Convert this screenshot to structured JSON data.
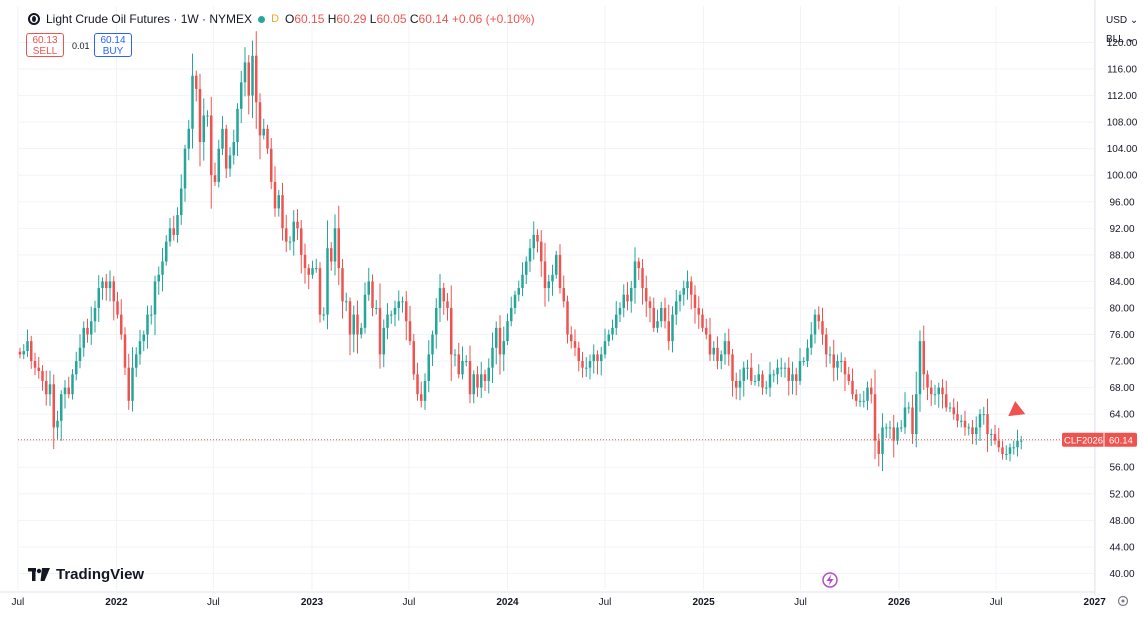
{
  "header": {
    "title": "Light Crude Oil Futures · 1W · NYMEX",
    "badge": "D",
    "open_label": "O",
    "open": "60.15",
    "high_label": "H",
    "high": "60.29",
    "low_label": "L",
    "low": "60.05",
    "close_label": "C",
    "close": "60.14",
    "change": "+0.06 (+0.10%)"
  },
  "trade": {
    "sell_price": "60.13",
    "sell_label": "SELL",
    "spread": "0.01",
    "buy_price": "60.14",
    "buy_label": "BUY"
  },
  "currency": {
    "ccy": "USD",
    "unit": "BLL"
  },
  "price_tag": {
    "symbol": "CLF2026",
    "value": "60.14"
  },
  "brand": "TradingView",
  "colors": {
    "up": "#26a69a",
    "down": "#ef5350",
    "grid": "#f0f3fa",
    "last_line": "#ef5350",
    "marker": "#ef5350"
  },
  "chart_data": {
    "type": "candlestick",
    "y_ticks": [
      "40.00",
      "44.00",
      "48.00",
      "52.00",
      "56.00",
      "60.00",
      "64.00",
      "68.00",
      "72.00",
      "76.00",
      "80.00",
      "84.00",
      "88.00",
      "92.00",
      "96.00",
      "100.00",
      "104.00",
      "108.00",
      "112.00",
      "116.00",
      "120.00"
    ],
    "x_ticks": [
      {
        "label": "Jul",
        "date": "2021-07"
      },
      {
        "label": "2022",
        "date": "2022-01"
      },
      {
        "label": "Jul",
        "date": "2022-07"
      },
      {
        "label": "2023",
        "date": "2023-01"
      },
      {
        "label": "Jul",
        "date": "2023-07"
      },
      {
        "label": "2024",
        "date": "2024-01"
      },
      {
        "label": "Jul",
        "date": "2024-07"
      },
      {
        "label": "2025",
        "date": "2025-01"
      },
      {
        "label": "Jul",
        "date": "2025-07"
      },
      {
        "label": "2026",
        "date": "2026-01"
      },
      {
        "label": "Jul",
        "date": "2026-07"
      },
      {
        "label": "2027",
        "date": "2027-01"
      }
    ],
    "ylim": [
      37.5,
      125.5
    ],
    "grid": true,
    "last_price": 60.14,
    "first_week": "2021-07-05",
    "series": [
      {
        "values": [
          73,
          73.5,
          75,
          72,
          71,
          70.5,
          69,
          67,
          68.5,
          62,
          63,
          67,
          68,
          67,
          70,
          72,
          74,
          77,
          76,
          78,
          80,
          83,
          84,
          83,
          84,
          81,
          79,
          76,
          71,
          66,
          71,
          73,
          75,
          76,
          79,
          79,
          84,
          85,
          87,
          90,
          92,
          91,
          94,
          98,
          104,
          107,
          115,
          113,
          105,
          109,
          109,
          100,
          99,
          104,
          107,
          101,
          103,
          105,
          110,
          114,
          117,
          112,
          118,
          111,
          106,
          107,
          104,
          99,
          95,
          97,
          92,
          90,
          90,
          93,
          92,
          88,
          86,
          85,
          86,
          86,
          79,
          79,
          89,
          87,
          92,
          86,
          81,
          81,
          76,
          79,
          76,
          77,
          82,
          84,
          80,
          80,
          73,
          77,
          79,
          79,
          80,
          81,
          81,
          78,
          75,
          70,
          67,
          66,
          69,
          73,
          76,
          80,
          83,
          81,
          80,
          73,
          73,
          70,
          72,
          72,
          67,
          70,
          68,
          70,
          69,
          71,
          74,
          77,
          73,
          75,
          78,
          80,
          82,
          83,
          85,
          87,
          89,
          91,
          90,
          87,
          83,
          84,
          85,
          88,
          83,
          81,
          76,
          75,
          74,
          72,
          71,
          71,
          72,
          73,
          72,
          73,
          75,
          76,
          77,
          79,
          80,
          82,
          81,
          83,
          87,
          86,
          83,
          81,
          80,
          77,
          78,
          80,
          78,
          75,
          79,
          81,
          82,
          83,
          84,
          82,
          80,
          79,
          77,
          76,
          73,
          74,
          72,
          73,
          75,
          73,
          69,
          68,
          69,
          71,
          71,
          69,
          69,
          70,
          68,
          68,
          70,
          70,
          71,
          71,
          71,
          69,
          70,
          69,
          72,
          72,
          74,
          76,
          79,
          78,
          76,
          73,
          73,
          71,
          72,
          72,
          70,
          69,
          67,
          66,
          66,
          66,
          68,
          67,
          60,
          58,
          62,
          62,
          62,
          60,
          62,
          62,
          65,
          65,
          61,
          67,
          75,
          70,
          68,
          67,
          67,
          68,
          67,
          65,
          65,
          64,
          63,
          63,
          62,
          62,
          61,
          62,
          64,
          64,
          61,
          61,
          60,
          59,
          58,
          58,
          59,
          59,
          60,
          60
        ]
      }
    ]
  }
}
